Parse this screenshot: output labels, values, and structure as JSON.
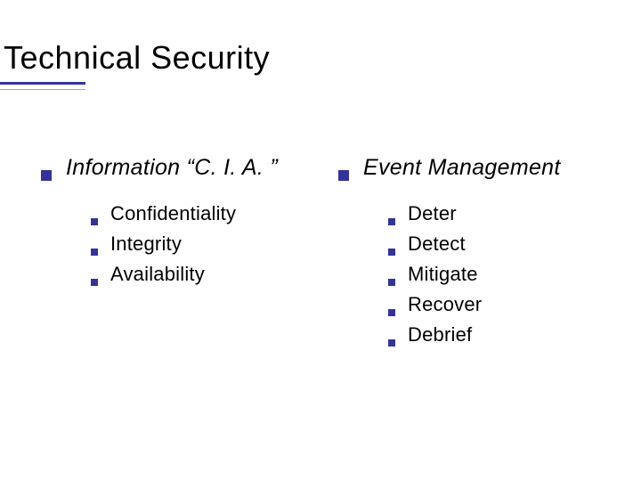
{
  "slide": {
    "title": "Technical Security",
    "title_fontsize": 36,
    "title_color": "#000000",
    "underline_color": "#333399",
    "underline_thin_color": "#b0a878",
    "background_color": "#ffffff",
    "columns": [
      {
        "heading": "Information “C. I. A. ”",
        "heading_italic": true,
        "heading_fontsize": 25,
        "items": [
          "Confidentiality",
          "Integrity",
          "Availability"
        ]
      },
      {
        "heading": "Event Management",
        "heading_italic": true,
        "heading_fontsize": 25,
        "items": [
          "Deter",
          "Detect",
          "Mitigate",
          "Recover",
          "Debrief"
        ]
      }
    ],
    "bullet_color": "#333399",
    "sub_bullet_color": "#333399",
    "body_fontsize": 22,
    "body_color": "#000000"
  }
}
